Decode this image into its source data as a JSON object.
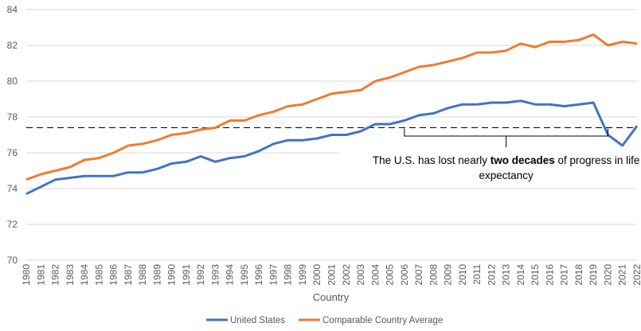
{
  "chart_data": {
    "type": "line",
    "title": "",
    "xlabel": "Country",
    "ylabel": "",
    "ylim": [
      70,
      84
    ],
    "yticks": [
      70,
      72,
      74,
      76,
      78,
      80,
      82,
      84
    ],
    "grid": "horizontal",
    "legend_position": "bottom",
    "x": [
      1980,
      1981,
      1982,
      1983,
      1984,
      1985,
      1986,
      1987,
      1988,
      1989,
      1990,
      1991,
      1992,
      1993,
      1994,
      1995,
      1996,
      1997,
      1998,
      1999,
      2000,
      2001,
      2002,
      2003,
      2004,
      2005,
      2006,
      2007,
      2008,
      2009,
      2010,
      2011,
      2012,
      2013,
      2014,
      2015,
      2016,
      2017,
      2018,
      2019,
      2020,
      2021,
      2022
    ],
    "series": [
      {
        "name": "United States",
        "color": "#4472C4",
        "values": [
          73.7,
          74.1,
          74.5,
          74.6,
          74.7,
          74.7,
          74.7,
          74.9,
          74.9,
          75.1,
          75.4,
          75.5,
          75.8,
          75.5,
          75.7,
          75.8,
          76.1,
          76.5,
          76.7,
          76.7,
          76.8,
          77.0,
          77.0,
          77.2,
          77.6,
          77.6,
          77.8,
          78.1,
          78.2,
          78.5,
          78.7,
          78.7,
          78.8,
          78.8,
          78.9,
          78.7,
          78.7,
          78.6,
          78.7,
          78.8,
          77.0,
          76.4,
          77.5
        ]
      },
      {
        "name": "Comparable Country Average",
        "color": "#ED7D31",
        "values": [
          74.5,
          74.8,
          75.0,
          75.2,
          75.6,
          75.7,
          76.0,
          76.4,
          76.5,
          76.7,
          77.0,
          77.1,
          77.3,
          77.4,
          77.8,
          77.8,
          78.1,
          78.3,
          78.6,
          78.7,
          79.0,
          79.3,
          79.4,
          79.5,
          80.0,
          80.2,
          80.5,
          80.8,
          80.9,
          81.1,
          81.3,
          81.6,
          81.6,
          81.7,
          82.1,
          81.9,
          82.2,
          82.2,
          82.3,
          82.6,
          82.0,
          82.2,
          82.1
        ]
      }
    ],
    "reference_line": {
      "value": 77.4,
      "style": "dashed"
    },
    "annotation": {
      "bracket_from": 2006,
      "bracket_to": 2020,
      "text_before": "The U.S. has lost nearly ",
      "text_bold": "two decades",
      "text_after": " of progress in life",
      "text_line2": "expectancy"
    }
  }
}
